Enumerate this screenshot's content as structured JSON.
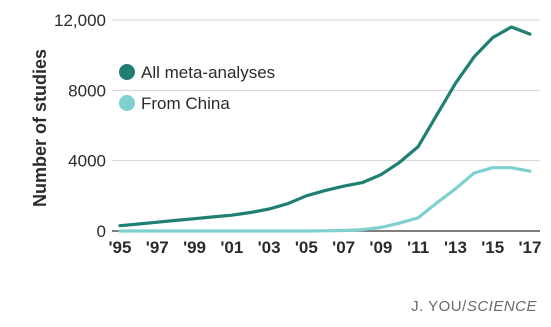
{
  "chart_data": {
    "type": "line",
    "title": "",
    "xlabel": "",
    "ylabel": "Number of studies",
    "x": [
      1995,
      1996,
      1997,
      1998,
      1999,
      2000,
      2001,
      2002,
      2003,
      2004,
      2005,
      2006,
      2007,
      2008,
      2009,
      2010,
      2011,
      2012,
      2013,
      2014,
      2015,
      2016,
      2017
    ],
    "xlim": [
      1995,
      2017
    ],
    "ylim": [
      0,
      12000
    ],
    "x_tick_values": [
      1995,
      1997,
      1999,
      2001,
      2003,
      2005,
      2007,
      2009,
      2011,
      2013,
      2015,
      2017
    ],
    "x_tick_labels": [
      "'95",
      "'97",
      "'99",
      "'01",
      "'03",
      "'05",
      "'07",
      "'09",
      "'11",
      "'13",
      "'15",
      "'17"
    ],
    "y_tick_values": [
      0,
      4000,
      8000,
      12000
    ],
    "y_tick_labels": [
      "0",
      "4000",
      "8000",
      "12,000"
    ],
    "grid": "horizontal",
    "legend_position": "top-left",
    "series": [
      {
        "name": "All meta-analyses",
        "color": "#1f7f72",
        "values": [
          300,
          400,
          500,
          600,
          700,
          800,
          900,
          1050,
          1250,
          1550,
          2000,
          2300,
          2550,
          2750,
          3200,
          3900,
          4800,
          6600,
          8400,
          9900,
          11000,
          11600,
          11200
        ]
      },
      {
        "name": "From China",
        "color": "#7fd0cf",
        "values": [
          0,
          0,
          0,
          0,
          0,
          0,
          0,
          0,
          0,
          0,
          0,
          10,
          30,
          80,
          200,
          450,
          750,
          1600,
          2400,
          3300,
          3600,
          3600,
          3400
        ]
      }
    ]
  },
  "credit": {
    "author": "J. YOU/",
    "publication": "SCIENCE"
  }
}
